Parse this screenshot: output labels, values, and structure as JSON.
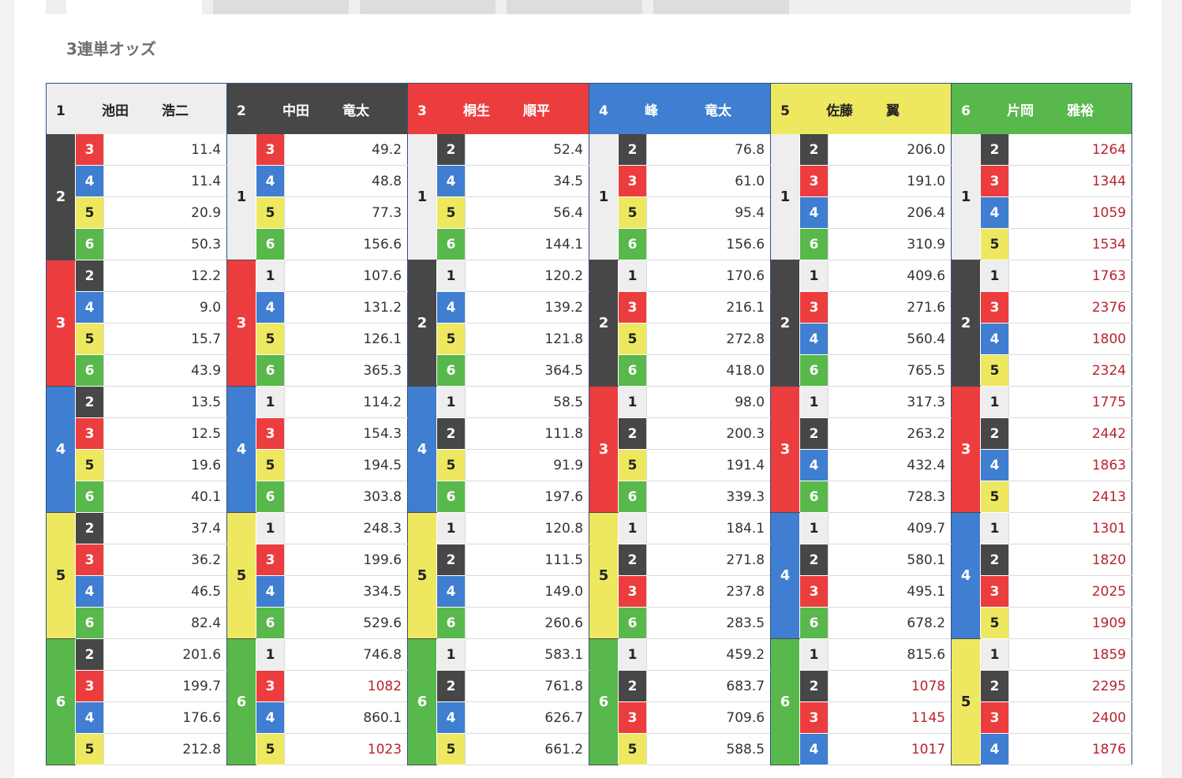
{
  "section_title": "3連単オッズ",
  "colors": {
    "1": "#eeeeee",
    "2": "#474747",
    "3": "#ec3d3e",
    "4": "#3f7ed1",
    "5": "#eee861",
    "6": "#59b84b",
    "high_odds_text": "#b8232c"
  },
  "racers": [
    {
      "num": "1",
      "name1": "池田",
      "name2": "浩二"
    },
    {
      "num": "2",
      "name1": "中田",
      "name2": "竜太"
    },
    {
      "num": "3",
      "name1": "桐生",
      "name2": "順平"
    },
    {
      "num": "4",
      "name1": "峰",
      "name2": "竜太"
    },
    {
      "num": "5",
      "name1": "佐藤",
      "name2": "翼"
    },
    {
      "num": "6",
      "name1": "片岡",
      "name2": "雅裕"
    }
  ],
  "odds": [
    [
      [
        "2",
        "3",
        "11.4"
      ],
      [
        "1",
        "3",
        "49.2"
      ],
      [
        "1",
        "2",
        "52.4"
      ],
      [
        "1",
        "2",
        "76.8"
      ],
      [
        "1",
        "2",
        "206.0"
      ],
      [
        "1",
        "2",
        "1264"
      ]
    ],
    [
      [
        "2",
        "4",
        "11.4"
      ],
      [
        "1",
        "4",
        "48.8"
      ],
      [
        "1",
        "4",
        "34.5"
      ],
      [
        "1",
        "3",
        "61.0"
      ],
      [
        "1",
        "3",
        "191.0"
      ],
      [
        "1",
        "3",
        "1344"
      ]
    ],
    [
      [
        "2",
        "5",
        "20.9"
      ],
      [
        "1",
        "5",
        "77.3"
      ],
      [
        "1",
        "5",
        "56.4"
      ],
      [
        "1",
        "5",
        "95.4"
      ],
      [
        "1",
        "4",
        "206.4"
      ],
      [
        "1",
        "4",
        "1059"
      ]
    ],
    [
      [
        "2",
        "6",
        "50.3"
      ],
      [
        "1",
        "6",
        "156.6"
      ],
      [
        "1",
        "6",
        "144.1"
      ],
      [
        "1",
        "6",
        "156.6"
      ],
      [
        "1",
        "6",
        "310.9"
      ],
      [
        "1",
        "5",
        "1534"
      ]
    ],
    [
      [
        "3",
        "2",
        "12.2"
      ],
      [
        "3",
        "1",
        "107.6"
      ],
      [
        "2",
        "1",
        "120.2"
      ],
      [
        "2",
        "1",
        "170.6"
      ],
      [
        "2",
        "1",
        "409.6"
      ],
      [
        "2",
        "1",
        "1763"
      ]
    ],
    [
      [
        "3",
        "4",
        "9.0"
      ],
      [
        "3",
        "4",
        "131.2"
      ],
      [
        "2",
        "4",
        "139.2"
      ],
      [
        "2",
        "3",
        "216.1"
      ],
      [
        "2",
        "3",
        "271.6"
      ],
      [
        "2",
        "3",
        "2376"
      ]
    ],
    [
      [
        "3",
        "5",
        "15.7"
      ],
      [
        "3",
        "5",
        "126.1"
      ],
      [
        "2",
        "5",
        "121.8"
      ],
      [
        "2",
        "5",
        "272.8"
      ],
      [
        "2",
        "4",
        "560.4"
      ],
      [
        "2",
        "4",
        "1800"
      ]
    ],
    [
      [
        "3",
        "6",
        "43.9"
      ],
      [
        "3",
        "6",
        "365.3"
      ],
      [
        "2",
        "6",
        "364.5"
      ],
      [
        "2",
        "6",
        "418.0"
      ],
      [
        "2",
        "6",
        "765.5"
      ],
      [
        "2",
        "5",
        "2324"
      ]
    ],
    [
      [
        "4",
        "2",
        "13.5"
      ],
      [
        "4",
        "1",
        "114.2"
      ],
      [
        "4",
        "1",
        "58.5"
      ],
      [
        "3",
        "1",
        "98.0"
      ],
      [
        "3",
        "1",
        "317.3"
      ],
      [
        "3",
        "1",
        "1775"
      ]
    ],
    [
      [
        "4",
        "3",
        "12.5"
      ],
      [
        "4",
        "3",
        "154.3"
      ],
      [
        "4",
        "2",
        "111.8"
      ],
      [
        "3",
        "2",
        "200.3"
      ],
      [
        "3",
        "2",
        "263.2"
      ],
      [
        "3",
        "2",
        "2442"
      ]
    ],
    [
      [
        "4",
        "5",
        "19.6"
      ],
      [
        "4",
        "5",
        "194.5"
      ],
      [
        "4",
        "5",
        "91.9"
      ],
      [
        "3",
        "5",
        "191.4"
      ],
      [
        "3",
        "4",
        "432.4"
      ],
      [
        "3",
        "4",
        "1863"
      ]
    ],
    [
      [
        "4",
        "6",
        "40.1"
      ],
      [
        "4",
        "6",
        "303.8"
      ],
      [
        "4",
        "6",
        "197.6"
      ],
      [
        "3",
        "6",
        "339.3"
      ],
      [
        "3",
        "6",
        "728.3"
      ],
      [
        "3",
        "5",
        "2413"
      ]
    ],
    [
      [
        "5",
        "2",
        "37.4"
      ],
      [
        "5",
        "1",
        "248.3"
      ],
      [
        "5",
        "1",
        "120.8"
      ],
      [
        "5",
        "1",
        "184.1"
      ],
      [
        "4",
        "1",
        "409.7"
      ],
      [
        "4",
        "1",
        "1301"
      ]
    ],
    [
      [
        "5",
        "3",
        "36.2"
      ],
      [
        "5",
        "3",
        "199.6"
      ],
      [
        "5",
        "2",
        "111.5"
      ],
      [
        "5",
        "2",
        "271.8"
      ],
      [
        "4",
        "2",
        "580.1"
      ],
      [
        "4",
        "2",
        "1820"
      ]
    ],
    [
      [
        "5",
        "4",
        "46.5"
      ],
      [
        "5",
        "4",
        "334.5"
      ],
      [
        "5",
        "4",
        "149.0"
      ],
      [
        "5",
        "3",
        "237.8"
      ],
      [
        "4",
        "3",
        "495.1"
      ],
      [
        "4",
        "3",
        "2025"
      ]
    ],
    [
      [
        "5",
        "6",
        "82.4"
      ],
      [
        "5",
        "6",
        "529.6"
      ],
      [
        "5",
        "6",
        "260.6"
      ],
      [
        "5",
        "6",
        "283.5"
      ],
      [
        "4",
        "6",
        "678.2"
      ],
      [
        "4",
        "5",
        "1909"
      ]
    ],
    [
      [
        "6",
        "2",
        "201.6"
      ],
      [
        "6",
        "1",
        "746.8"
      ],
      [
        "6",
        "1",
        "583.1"
      ],
      [
        "6",
        "1",
        "459.2"
      ],
      [
        "6",
        "1",
        "815.6"
      ],
      [
        "5",
        "1",
        "1859"
      ]
    ],
    [
      [
        "6",
        "3",
        "199.7"
      ],
      [
        "6",
        "3",
        "1082"
      ],
      [
        "6",
        "2",
        "761.8"
      ],
      [
        "6",
        "2",
        "683.7"
      ],
      [
        "6",
        "2",
        "1078"
      ],
      [
        "5",
        "2",
        "2295"
      ]
    ],
    [
      [
        "6",
        "4",
        "176.6"
      ],
      [
        "6",
        "4",
        "860.1"
      ],
      [
        "6",
        "4",
        "626.7"
      ],
      [
        "6",
        "3",
        "709.6"
      ],
      [
        "6",
        "3",
        "1145"
      ],
      [
        "5",
        "3",
        "2400"
      ]
    ],
    [
      [
        "6",
        "5",
        "212.8"
      ],
      [
        "6",
        "5",
        "1023"
      ],
      [
        "6",
        "5",
        "661.2"
      ],
      [
        "6",
        "5",
        "588.5"
      ],
      [
        "6",
        "4",
        "1017"
      ],
      [
        "5",
        "4",
        "1876"
      ]
    ]
  ]
}
